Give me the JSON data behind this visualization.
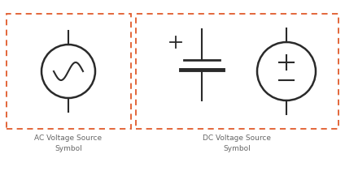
{
  "bg_color": "#ffffff",
  "border_color": "#E05A2B",
  "line_color": "#2a2a2a",
  "text_color": "#666666",
  "label_ac": "AC Voltage Source\nSymbol",
  "label_dc": "DC Voltage Source\nSymbol",
  "figsize": [
    4.24,
    2.16
  ],
  "dpi": 100
}
